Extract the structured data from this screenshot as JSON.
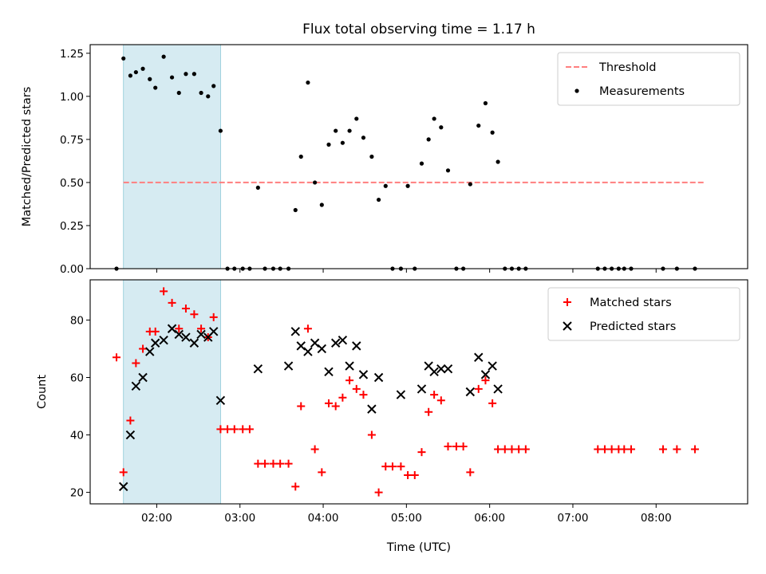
{
  "chart_data": [
    {
      "type": "scatter",
      "title": "Flux total observing time = 1.17 h",
      "xlabel": "",
      "ylabel": "Matched/Predicted stars",
      "ylim": [
        0,
        1.3
      ],
      "xlim": [
        "01:12",
        "09:06"
      ],
      "x_ticks": [
        "02:00",
        "03:00",
        "04:00",
        "05:00",
        "06:00",
        "07:00",
        "08:00"
      ],
      "x_tick_labels_shown": false,
      "y_ticks": [
        "0.00",
        "0.25",
        "0.50",
        "0.75",
        "1.00",
        "1.25"
      ],
      "highlight_span": {
        "x_start": "01:36",
        "x_end": "02:46",
        "color": "#add8e6"
      },
      "threshold": {
        "name": "Threshold",
        "value": 0.5,
        "x_start": "01:36",
        "x_end": "08:35",
        "color": "#ff7f7f",
        "style": "dashed"
      },
      "legend": {
        "position": "top-right",
        "entries": [
          "Threshold",
          "Measurements"
        ]
      },
      "series": [
        {
          "name": "Measurements",
          "color": "#000000",
          "marker": "dot",
          "x": [
            "01:31",
            "01:36",
            "01:41",
            "01:45",
            "01:50",
            "01:55",
            "01:59",
            "02:05",
            "02:11",
            "02:16",
            "02:21",
            "02:27",
            "02:32",
            "02:37",
            "02:41",
            "02:46",
            "02:51",
            "02:56",
            "03:02",
            "03:07",
            "03:13",
            "03:18",
            "03:24",
            "03:29",
            "03:35",
            "03:40",
            "03:44",
            "03:49",
            "03:54",
            "03:59",
            "04:04",
            "04:09",
            "04:14",
            "04:19",
            "04:24",
            "04:29",
            "04:35",
            "04:40",
            "04:45",
            "04:50",
            "04:56",
            "05:01",
            "05:06",
            "05:11",
            "05:16",
            "05:20",
            "05:25",
            "05:30",
            "05:36",
            "05:41",
            "05:46",
            "05:52",
            "05:57",
            "06:02",
            "06:06",
            "06:11",
            "06:16",
            "06:21",
            "06:26",
            "07:18",
            "07:23",
            "07:28",
            "07:33",
            "07:37",
            "07:42",
            "08:05",
            "08:15",
            "08:28"
          ],
          "y": [
            0.0,
            1.22,
            1.12,
            1.14,
            1.16,
            1.1,
            1.05,
            1.23,
            1.11,
            1.02,
            1.13,
            1.13,
            1.02,
            1.0,
            1.06,
            0.8,
            0.0,
            0.0,
            0.0,
            0.0,
            0.47,
            0.0,
            0.0,
            0.0,
            0.0,
            0.34,
            0.65,
            1.08,
            0.5,
            0.37,
            0.72,
            0.8,
            0.73,
            0.8,
            0.87,
            0.76,
            0.65,
            0.4,
            0.48,
            0.0,
            0.0,
            0.48,
            0.0,
            0.61,
            0.75,
            0.87,
            0.82,
            0.57,
            0.0,
            0.0,
            0.49,
            0.83,
            0.96,
            0.79,
            0.62,
            0.0,
            0.0,
            0.0,
            0.0,
            0.0,
            0.0,
            0.0,
            0.0,
            0.0,
            0.0,
            0.0,
            0.0,
            0.0
          ]
        }
      ]
    },
    {
      "type": "scatter",
      "title": "",
      "xlabel": "Time (UTC)",
      "ylabel": "Count",
      "ylim": [
        16,
        94
      ],
      "xlim": [
        "01:12",
        "09:06"
      ],
      "x_ticks": [
        "02:00",
        "03:00",
        "04:00",
        "05:00",
        "06:00",
        "07:00",
        "08:00"
      ],
      "y_ticks": [
        "20",
        "40",
        "60",
        "80"
      ],
      "highlight_span": {
        "x_start": "01:36",
        "x_end": "02:46",
        "color": "#add8e6"
      },
      "legend": {
        "position": "top-right",
        "entries": [
          "Matched stars",
          "Predicted stars"
        ]
      },
      "series": [
        {
          "name": "Matched stars",
          "color": "#ff0000",
          "marker": "plus",
          "x": [
            "01:31",
            "01:36",
            "01:41",
            "01:45",
            "01:50",
            "01:55",
            "01:59",
            "02:05",
            "02:11",
            "02:16",
            "02:21",
            "02:27",
            "02:32",
            "02:37",
            "02:41",
            "02:46",
            "02:51",
            "02:56",
            "03:02",
            "03:07",
            "03:13",
            "03:18",
            "03:24",
            "03:29",
            "03:35",
            "03:40",
            "03:44",
            "03:49",
            "03:54",
            "03:59",
            "04:04",
            "04:09",
            "04:14",
            "04:19",
            "04:24",
            "04:29",
            "04:35",
            "04:40",
            "04:45",
            "04:50",
            "04:56",
            "05:01",
            "05:06",
            "05:11",
            "05:16",
            "05:20",
            "05:25",
            "05:30",
            "05:36",
            "05:41",
            "05:46",
            "05:52",
            "05:57",
            "06:02",
            "06:06",
            "06:11",
            "06:16",
            "06:21",
            "06:26",
            "07:18",
            "07:23",
            "07:28",
            "07:33",
            "07:37",
            "07:42",
            "08:05",
            "08:15",
            "08:28"
          ],
          "y": [
            67,
            27,
            45,
            65,
            70,
            76,
            76,
            90,
            86,
            77,
            84,
            82,
            77,
            74,
            81,
            42,
            42,
            42,
            42,
            42,
            30,
            30,
            30,
            30,
            30,
            22,
            50,
            77,
            35,
            27,
            51,
            50,
            53,
            59,
            56,
            54,
            40,
            20,
            29,
            29,
            29,
            26,
            26,
            34,
            48,
            54,
            52,
            36,
            36,
            36,
            27,
            56,
            59,
            51,
            35,
            35,
            35,
            35,
            35,
            35,
            35,
            35,
            35,
            35,
            35,
            35,
            35,
            35
          ]
        },
        {
          "name": "Predicted stars",
          "color": "#000000",
          "marker": "x",
          "x": [
            "01:36",
            "01:41",
            "01:45",
            "01:50",
            "01:55",
            "01:59",
            "02:05",
            "02:11",
            "02:16",
            "02:21",
            "02:27",
            "02:32",
            "02:37",
            "02:41",
            "02:46",
            "03:13",
            "03:35",
            "03:40",
            "03:44",
            "03:49",
            "03:54",
            "03:59",
            "04:04",
            "04:09",
            "04:14",
            "04:19",
            "04:24",
            "04:29",
            "04:35",
            "04:40",
            "04:56",
            "05:11",
            "05:16",
            "05:20",
            "05:25",
            "05:30",
            "05:46",
            "05:52",
            "05:57",
            "06:02",
            "06:06"
          ],
          "y": [
            22,
            40,
            57,
            60,
            69,
            72,
            73,
            77,
            75,
            74,
            72,
            75,
            74,
            76,
            52,
            63,
            64,
            76,
            71,
            69,
            72,
            70,
            62,
            72,
            73,
            64,
            71,
            61,
            49,
            60,
            54,
            56,
            64,
            62,
            63,
            63,
            55,
            67,
            61,
            64,
            56
          ]
        }
      ]
    }
  ]
}
